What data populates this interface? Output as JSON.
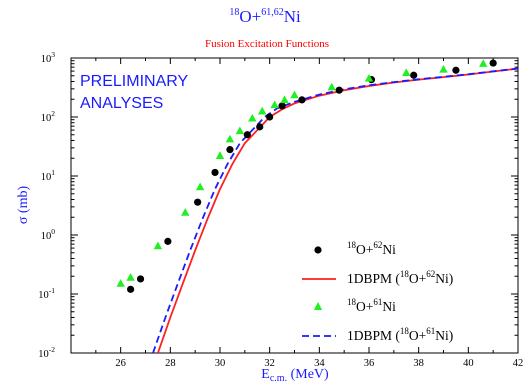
{
  "chart_data": {
    "type": "scatter",
    "title_pre": "18",
    "title_mid": "O+",
    "title_sup": "61,62",
    "title_post": "Ni",
    "subtitle": "Fusion Excitation Functions",
    "annotation_line1": "PRELIMINARY",
    "annotation_line2": "ANALYSES",
    "xlabel_main": "E",
    "xlabel_sub": "c.m.",
    "xlabel_unit": " (MeV)",
    "ylabel": "σ (mb)",
    "xlim": [
      24,
      42
    ],
    "ylim": [
      0.01,
      1000
    ],
    "yscale": "log",
    "x_ticks": [
      "26",
      "28",
      "30",
      "32",
      "34",
      "36",
      "38",
      "40",
      "42"
    ],
    "y_ticks": [
      {
        "mant": "10",
        "exp": "-2"
      },
      {
        "mant": "10",
        "exp": "-1"
      },
      {
        "mant": "10",
        "exp": "0"
      },
      {
        "mant": "10",
        "exp": "1"
      },
      {
        "mant": "10",
        "exp": "2"
      },
      {
        "mant": "10",
        "exp": "3"
      }
    ],
    "legend_position": "right",
    "colors": {
      "data62": "#000000",
      "model62": "#ff2020",
      "data61": "#22ee22",
      "model61": "#1a1aff",
      "title": "#1a1aff",
      "subtitle": "#ff0000"
    },
    "series": [
      {
        "name": "18O+62Ni data",
        "marker": "circle",
        "x": [
          26.4,
          26.8,
          27.9,
          29.1,
          29.8,
          30.4,
          31.1,
          31.6,
          32.0,
          32.5,
          33.3,
          34.8,
          36.1,
          37.8,
          39.5,
          41.0
        ],
        "y": [
          0.12,
          0.18,
          0.78,
          3.6,
          11.5,
          28,
          50,
          68,
          100,
          155,
          195,
          285,
          430,
          510,
          620,
          820
        ]
      },
      {
        "name": "1DBPM (18O+62Ni)",
        "marker": "line",
        "x": [
          27.5,
          28.0,
          28.5,
          29.0,
          29.5,
          30.0,
          30.5,
          31.0,
          31.5,
          32.0,
          32.5,
          33.0,
          34.0,
          35.0,
          36.0,
          37.0,
          38.0,
          39.0,
          40.0,
          41.0,
          42.0
        ],
        "y": [
          0.01,
          0.04,
          0.15,
          0.55,
          1.9,
          6,
          16,
          36,
          60,
          100,
          135,
          170,
          230,
          285,
          335,
          385,
          430,
          475,
          525,
          590,
          660
        ]
      },
      {
        "name": "18O+61Ni data",
        "marker": "triangle",
        "x": [
          26.0,
          26.4,
          27.5,
          28.6,
          29.2,
          30.0,
          30.4,
          30.8,
          31.3,
          31.7,
          32.2,
          32.6,
          33.0,
          34.5,
          36.0,
          37.5,
          39.0,
          40.6
        ],
        "y": [
          0.15,
          0.19,
          0.65,
          2.4,
          6.5,
          22,
          42,
          58,
          95,
          125,
          160,
          195,
          235,
          320,
          450,
          560,
          640,
          800
        ]
      },
      {
        "name": "1DBPM (18O+61Ni)",
        "marker": "dashed",
        "x": [
          27.3,
          27.8,
          28.3,
          28.8,
          29.3,
          29.8,
          30.3,
          30.8,
          31.3,
          31.8,
          32.3,
          33.0,
          34.0,
          35.0,
          36.0,
          37.0,
          38.0,
          39.0,
          40.0,
          41.0,
          42.0
        ],
        "y": [
          0.01,
          0.04,
          0.15,
          0.55,
          1.9,
          6,
          16,
          36,
          60,
          100,
          140,
          180,
          240,
          295,
          345,
          390,
          435,
          480,
          530,
          595,
          665
        ]
      }
    ],
    "legend": [
      {
        "pre": "18",
        "a": "O+",
        "sup": "62",
        "b": "Ni",
        "model": false
      },
      {
        "pre": "1DBPM (",
        "sup1": "18",
        "a": "O+",
        "sup": "62",
        "b": "Ni)",
        "model": true
      },
      {
        "pre": "18",
        "a": "O+",
        "sup": "61",
        "b": "Ni",
        "model": false
      },
      {
        "pre": "1DBPM (",
        "sup1": "18",
        "a": "O+",
        "sup": "61",
        "b": "Ni)",
        "model": true
      }
    ]
  }
}
